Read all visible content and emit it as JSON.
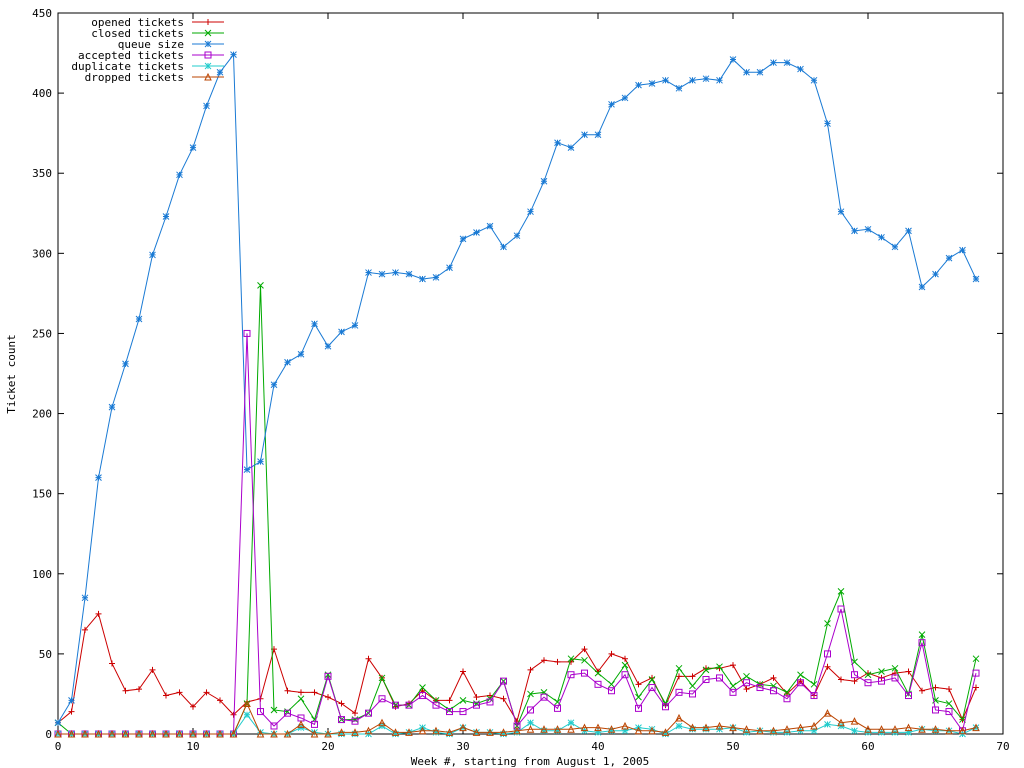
{
  "chart_data": {
    "type": "line",
    "title": "",
    "xlabel": "Week #, starting from August 1, 2005",
    "ylabel": "Ticket count",
    "xlim": [
      0,
      70
    ],
    "ylim": [
      0,
      450
    ],
    "xticks": [
      0,
      10,
      20,
      30,
      40,
      50,
      60,
      70
    ],
    "yticks": [
      0,
      50,
      100,
      150,
      200,
      250,
      300,
      350,
      400,
      450
    ],
    "grid": false,
    "legend_position": "top-left",
    "x": [
      0,
      1,
      2,
      3,
      4,
      5,
      6,
      7,
      8,
      9,
      10,
      11,
      12,
      13,
      14,
      15,
      16,
      17,
      18,
      19,
      20,
      21,
      22,
      23,
      24,
      25,
      26,
      27,
      28,
      29,
      30,
      31,
      32,
      33,
      34,
      35,
      36,
      37,
      38,
      39,
      40,
      41,
      42,
      43,
      44,
      45,
      46,
      47,
      48,
      49,
      50,
      51,
      52,
      53,
      54,
      55,
      56,
      57,
      58,
      59,
      60,
      61,
      62,
      63,
      64,
      65,
      66,
      67,
      68
    ],
    "series": [
      {
        "name": "opened tickets",
        "color": "#cc0000",
        "marker": "plus",
        "values": [
          7,
          14,
          65,
          75,
          44,
          27,
          28,
          40,
          24,
          26,
          17,
          26,
          21,
          12,
          20,
          22,
          53,
          27,
          26,
          26,
          23,
          19,
          13,
          47,
          35,
          17,
          19,
          27,
          21,
          21,
          39,
          23,
          24,
          22,
          8,
          40,
          46,
          45,
          45,
          53,
          39,
          50,
          47,
          31,
          35,
          18,
          36,
          36,
          41,
          41,
          43,
          28,
          31,
          35,
          25,
          33,
          24,
          42,
          34,
          33,
          38,
          35,
          38,
          39,
          27,
          29,
          28,
          9,
          29
        ]
      },
      {
        "name": "closed tickets",
        "color": "#00aa00",
        "marker": "cross",
        "values": [
          7,
          0,
          0,
          0,
          0,
          0,
          0,
          0,
          0,
          0,
          0,
          0,
          0,
          0,
          19,
          280,
          15,
          14,
          22,
          9,
          37,
          9,
          9,
          13,
          35,
          18,
          18,
          29,
          21,
          15,
          21,
          19,
          22,
          33,
          5,
          25,
          26,
          20,
          47,
          46,
          38,
          31,
          43,
          23,
          34,
          19,
          41,
          30,
          40,
          42,
          30,
          36,
          31,
          30,
          26,
          37,
          31,
          69,
          89,
          45,
          37,
          39,
          41,
          25,
          62,
          21,
          19,
          9,
          47
        ]
      },
      {
        "name": "queue size",
        "color": "#1a7ad4",
        "marker": "star",
        "values": [
          7,
          21,
          85,
          160,
          204,
          231,
          259,
          299,
          323,
          349,
          366,
          392,
          413,
          424,
          165,
          170,
          218,
          232,
          237,
          256,
          242,
          251,
          255,
          288,
          287,
          288,
          287,
          284,
          285,
          291,
          309,
          313,
          317,
          304,
          311,
          326,
          345,
          369,
          366,
          374,
          374,
          393,
          397,
          405,
          406,
          408,
          403,
          408,
          409,
          408,
          421,
          413,
          413,
          419,
          419,
          415,
          408,
          381,
          326,
          314,
          315,
          310,
          304,
          314,
          279,
          287,
          297,
          302,
          284
        ]
      },
      {
        "name": "accepted tickets",
        "color": "#aa00cc",
        "marker": "square",
        "values": [
          0,
          0,
          0,
          0,
          0,
          0,
          0,
          0,
          0,
          0,
          0,
          0,
          0,
          0,
          250,
          14,
          5,
          13,
          10,
          6,
          36,
          9,
          8,
          13,
          22,
          18,
          18,
          24,
          18,
          14,
          14,
          18,
          20,
          33,
          5,
          15,
          23,
          16,
          37,
          38,
          31,
          27,
          37,
          16,
          29,
          17,
          26,
          25,
          34,
          35,
          26,
          32,
          29,
          27,
          22,
          32,
          24,
          50,
          78,
          37,
          32,
          33,
          35,
          24,
          57,
          15,
          14,
          2,
          38
        ]
      },
      {
        "name": "duplicate tickets",
        "color": "#22cccc",
        "marker": "star",
        "values": [
          0,
          0,
          0,
          0,
          0,
          0,
          0,
          0,
          0,
          0,
          0,
          0,
          0,
          0,
          12,
          1,
          0,
          0,
          4,
          1,
          0,
          0,
          0,
          0,
          5,
          0,
          1,
          4,
          1,
          0,
          4,
          1,
          1,
          0,
          1,
          7,
          2,
          2,
          7,
          2,
          1,
          2,
          2,
          4,
          3,
          0,
          5,
          3,
          3,
          3,
          4,
          1,
          2,
          1,
          1,
          2,
          2,
          6,
          5,
          2,
          1,
          1,
          1,
          1,
          3,
          2,
          2,
          0,
          4
        ]
      },
      {
        "name": "dropped tickets",
        "color": "#bb4400",
        "marker": "triangle",
        "values": [
          0,
          0,
          0,
          0,
          0,
          0,
          0,
          0,
          0,
          0,
          0,
          0,
          0,
          0,
          19,
          0,
          0,
          0,
          6,
          0,
          0,
          1,
          1,
          2,
          7,
          1,
          1,
          2,
          2,
          1,
          4,
          1,
          1,
          1,
          2,
          3,
          3,
          3,
          3,
          4,
          4,
          3,
          5,
          2,
          2,
          1,
          10,
          4,
          4,
          5,
          4,
          3,
          2,
          2,
          3,
          4,
          5,
          13,
          7,
          8,
          3,
          3,
          3,
          4,
          3,
          3,
          2,
          2,
          4
        ]
      }
    ]
  }
}
